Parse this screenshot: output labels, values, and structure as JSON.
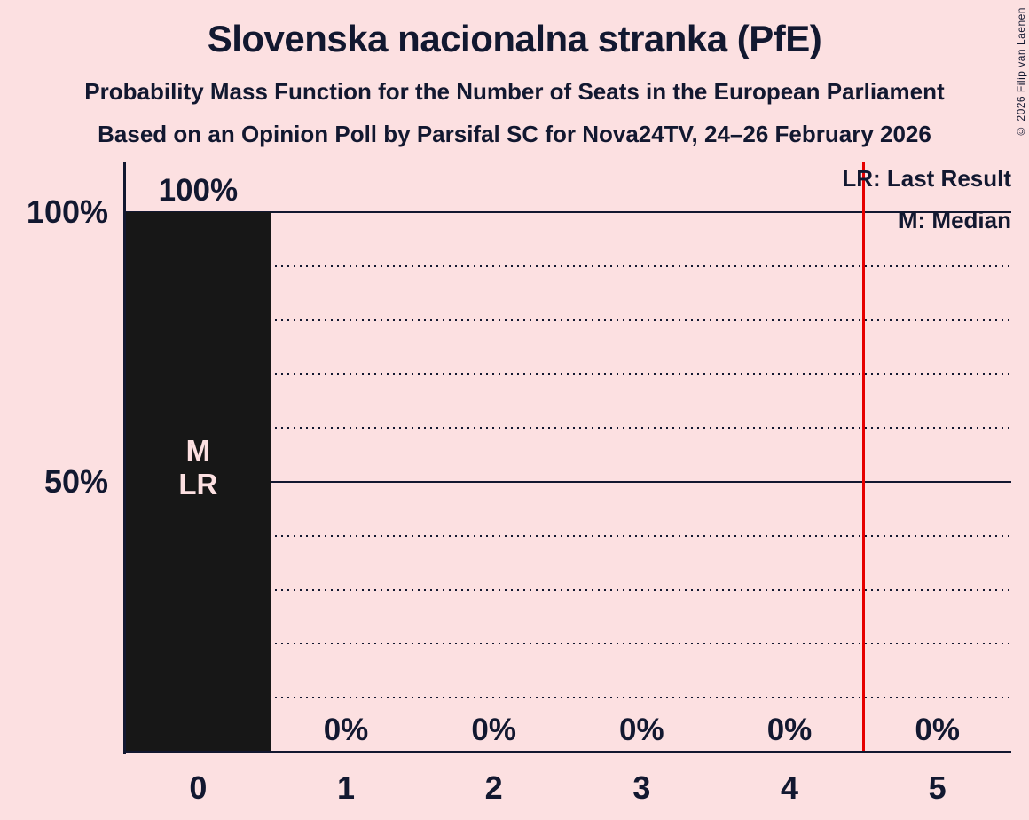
{
  "title": "Slovenska nacionalna stranka (PfE)",
  "subtitle": "Probability Mass Function for the Number of Seats in the European Parliament",
  "sub_subtitle": "Based on an Opinion Poll by Parsifal SC for Nova24TV, 24–26 February 2026",
  "copyright": "© 2026 Filip van Laenen",
  "legend": {
    "last_result": "LR: Last Result",
    "median": "M: Median"
  },
  "colors": {
    "background": "#fce0e1",
    "text": "#121830",
    "bar": "#171717",
    "bar_annotation": "#fce0e1",
    "last_result_line": "#e60000"
  },
  "chart_data": {
    "type": "bar",
    "title": "Slovenska nacionalna stranka (PfE)",
    "subtitle": "Probability Mass Function for the Number of Seats in the European Parliament",
    "xlabel": "",
    "ylabel": "",
    "categories": [
      "0",
      "1",
      "2",
      "3",
      "4",
      "5"
    ],
    "values": [
      100,
      0,
      0,
      0,
      0,
      0
    ],
    "value_labels": [
      "100%",
      "0%",
      "0%",
      "0%",
      "0%",
      "0%"
    ],
    "ylim": [
      0,
      100
    ],
    "y_ticks": [
      {
        "value": 100,
        "label": "100%"
      },
      {
        "value": 50,
        "label": "50%"
      }
    ],
    "solid_gridlines_pct": [
      100,
      50
    ],
    "dotted_gridlines_pct": [
      90,
      80,
      70,
      60,
      40,
      30,
      20,
      10
    ],
    "grid": "horizontal",
    "legend_position": "top-right",
    "median_seats": 0,
    "last_result_seats": 0,
    "annotated_bar_index": 0,
    "bar_annotation_lines": [
      "M",
      "LR"
    ],
    "last_result_marker_seat_position": 4.5
  }
}
